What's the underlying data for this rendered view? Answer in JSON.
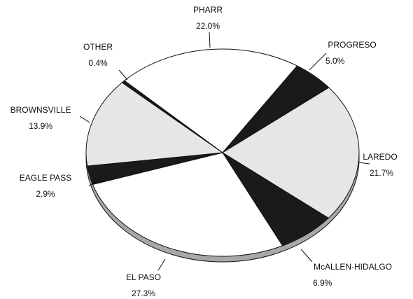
{
  "chart_data": {
    "type": "pie",
    "categories": [
      "PHARR",
      "PROGRESO",
      "LAREDO",
      "McALLEN-HIDALGO",
      "EL PASO",
      "EAGLE PASS",
      "BROWNSVILLE",
      "OTHER"
    ],
    "values": [
      22.0,
      5.0,
      21.7,
      6.9,
      27.3,
      2.9,
      13.9,
      0.4
    ],
    "value_labels": [
      "22.0%",
      "5.0%",
      "21.7%",
      "6.9%",
      "27.3%",
      "2.9%",
      "13.9%",
      "0.4%"
    ],
    "colors": [
      "#ffffff",
      "#1a1a1a",
      "#e6e6e6",
      "#1a1a1a",
      "#ffffff",
      "#1a1a1a",
      "#e6e6e6",
      "#1a1a1a"
    ]
  }
}
